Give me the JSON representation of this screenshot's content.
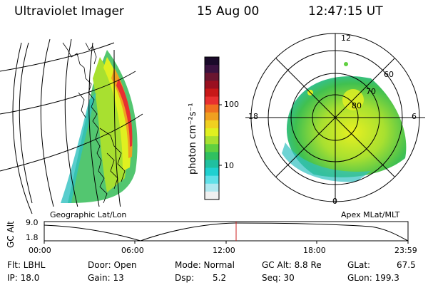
{
  "header": {
    "title": "Ultraviolet Imager",
    "date": "15 Aug 00",
    "time": "12:47:15 UT"
  },
  "geo_panel": {
    "caption": "Geographic Lat/Lon"
  },
  "polar_panel": {
    "caption": "Apex MLat/MLT",
    "mlt_labels": [
      "12",
      "18",
      "6",
      "0"
    ],
    "lat_labels": [
      "60",
      "70",
      "80"
    ]
  },
  "colorbar": {
    "unit_label": "photon cm⁻²s⁻¹",
    "tick_labels": [
      "100",
      "10"
    ],
    "colors": [
      "#1a0a2a",
      "#3a1240",
      "#6a1530",
      "#9a1020",
      "#c81818",
      "#e83030",
      "#f07020",
      "#f0a020",
      "#f0d020",
      "#e0f020",
      "#a8e030",
      "#60d040",
      "#30c060",
      "#20c0a0",
      "#20d0d0",
      "#60e0e8",
      "#b0e8f0",
      "#f0f0f0"
    ]
  },
  "timeline": {
    "axis_label": "GC Alt",
    "y_labels": [
      "9.0",
      "1.8"
    ],
    "x_labels": [
      "00:00",
      "06:00",
      "12:00",
      "18:00",
      "23:59"
    ],
    "marker_color": "#cc2020"
  },
  "info": {
    "filter": "Flt: LBHL",
    "door": "Door: Open",
    "mode": "Mode: Normal",
    "gc_alt": "GC Alt: 8.8 Re",
    "glat": "GLat:",
    "glat_val": "67.5",
    "ip": "IP: 18.0",
    "gain": "Gain: 13",
    "dsp": "Dsp:",
    "dsp_val": "5.2",
    "seq": "Seq: 30",
    "glon": "GLon: 199.3"
  }
}
